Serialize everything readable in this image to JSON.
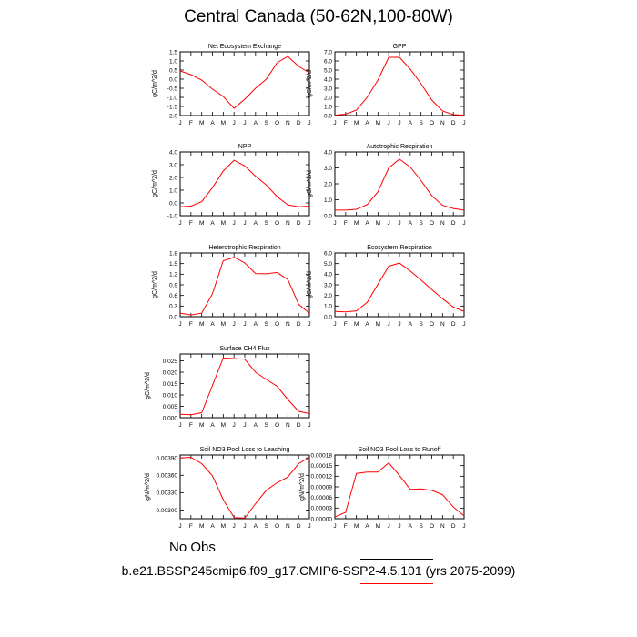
{
  "title": "Central Canada (50-62N,100-80W)",
  "no_obs": "No Obs",
  "case_caption": "b.e21.BSSP245cmip6.f09_g17.CMIP6-SSP2-4.5.101 (yrs 2075-2099)",
  "line_color": "#ff0000",
  "chart_data": [
    {
      "type": "line",
      "title": "Net Ecosystem Exchange",
      "ylabel": "gC/m^2/d",
      "x": [
        "J",
        "F",
        "M",
        "A",
        "M",
        "J",
        "J",
        "A",
        "S",
        "O",
        "N",
        "D",
        "J"
      ],
      "values": [
        0.45,
        0.25,
        -0.05,
        -0.55,
        -0.95,
        -1.6,
        -1.1,
        -0.5,
        0.0,
        0.9,
        1.25,
        0.7,
        0.35
      ],
      "ylim": [
        -2.0,
        1.5
      ],
      "yticks": [
        "-2.0",
        "-1.5",
        "-1.0",
        "-0.5",
        "0.0",
        "0.5",
        "1.0",
        "1.5"
      ]
    },
    {
      "type": "line",
      "title": "GPP",
      "ylabel": "gC/m^2/d",
      "x": [
        "J",
        "F",
        "M",
        "A",
        "M",
        "J",
        "J",
        "A",
        "S",
        "O",
        "N",
        "D",
        "J"
      ],
      "values": [
        0.05,
        0.15,
        0.6,
        2.0,
        3.9,
        6.4,
        6.4,
        5.1,
        3.5,
        1.7,
        0.5,
        0.1,
        0.05
      ],
      "ylim": [
        0.0,
        7.0
      ],
      "yticks": [
        "0.0",
        "1.0",
        "2.0",
        "3.0",
        "4.0",
        "5.0",
        "6.0",
        "7.0"
      ]
    },
    {
      "type": "line",
      "title": "NPP",
      "ylabel": "gC/m^2/d",
      "x": [
        "J",
        "F",
        "M",
        "A",
        "M",
        "J",
        "J",
        "A",
        "S",
        "O",
        "N",
        "D",
        "J"
      ],
      "values": [
        -0.3,
        -0.25,
        0.1,
        1.2,
        2.5,
        3.35,
        2.9,
        2.1,
        1.4,
        0.5,
        -0.15,
        -0.3,
        -0.25
      ],
      "ylim": [
        -1.0,
        4.0
      ],
      "yticks": [
        "-1.0",
        "0.0",
        "1.0",
        "2.0",
        "3.0",
        "4.0"
      ]
    },
    {
      "type": "line",
      "title": "Autotrophic Respiration",
      "ylabel": "gC/m^2/d",
      "x": [
        "J",
        "F",
        "M",
        "A",
        "M",
        "J",
        "J",
        "A",
        "S",
        "O",
        "N",
        "D",
        "J"
      ],
      "values": [
        0.35,
        0.35,
        0.4,
        0.7,
        1.5,
        3.0,
        3.55,
        3.05,
        2.2,
        1.25,
        0.65,
        0.45,
        0.35
      ],
      "ylim": [
        0.0,
        4.0
      ],
      "yticks": [
        "0.0",
        "1.0",
        "2.0",
        "3.0",
        "4.0"
      ]
    },
    {
      "type": "line",
      "title": "Heterotrophic Respiration",
      "ylabel": "gC/m^2/d",
      "x": [
        "J",
        "F",
        "M",
        "A",
        "M",
        "J",
        "J",
        "A",
        "S",
        "O",
        "N",
        "D",
        "J"
      ],
      "values": [
        0.1,
        0.05,
        0.1,
        0.65,
        1.58,
        1.68,
        1.52,
        1.22,
        1.21,
        1.25,
        1.05,
        0.35,
        0.1
      ],
      "ylim": [
        0.0,
        1.8
      ],
      "yticks": [
        "0.0",
        "0.3",
        "0.6",
        "0.9",
        "1.2",
        "1.5",
        "1.8"
      ]
    },
    {
      "type": "line",
      "title": "Ecosystem Respiration",
      "ylabel": "gC/m^2/d",
      "x": [
        "J",
        "F",
        "M",
        "A",
        "M",
        "J",
        "J",
        "A",
        "S",
        "O",
        "N",
        "D",
        "J"
      ],
      "values": [
        0.5,
        0.45,
        0.55,
        1.35,
        3.05,
        4.75,
        5.05,
        4.3,
        3.45,
        2.55,
        1.7,
        0.9,
        0.5
      ],
      "ylim": [
        0.0,
        6.0
      ],
      "yticks": [
        "0.0",
        "1.0",
        "2.0",
        "3.0",
        "4.0",
        "5.0",
        "6.0"
      ]
    },
    {
      "type": "line",
      "title": "Surface CH4 Flux",
      "ylabel": "gC/m^2/d",
      "x": [
        "J",
        "F",
        "M",
        "A",
        "M",
        "J",
        "J",
        "A",
        "S",
        "O",
        "N",
        "D",
        "J"
      ],
      "values": [
        0.0015,
        0.0013,
        0.0022,
        0.0142,
        0.0262,
        0.026,
        0.0257,
        0.02,
        0.0168,
        0.0138,
        0.008,
        0.0028,
        0.0018
      ],
      "ylim": [
        0.0,
        0.028
      ],
      "yticks": [
        "0.000",
        "0.005",
        "0.010",
        "0.015",
        "0.020",
        "0.025"
      ],
      "ytick_values": [
        0.0,
        0.005,
        0.01,
        0.015,
        0.02,
        0.025
      ]
    },
    null,
    {
      "type": "line",
      "title": "Soil NO3 Pool Loss to Leaching",
      "ylabel": "gN/m^2/d",
      "x": [
        "J",
        "F",
        "M",
        "A",
        "M",
        "J",
        "J",
        "A",
        "S",
        "O",
        "N",
        "D",
        "J"
      ],
      "values": [
        0.0039,
        0.00391,
        0.0038,
        0.00359,
        0.00318,
        0.00287,
        0.00286,
        0.00311,
        0.00334,
        0.00347,
        0.00357,
        0.0038,
        0.00391
      ],
      "ylim": [
        0.00285,
        0.00395
      ],
      "yticks": [
        "0.00300",
        "0.00330",
        "0.00360",
        "0.00390"
      ],
      "ytick_values": [
        0.003,
        0.0033,
        0.0036,
        0.0039
      ]
    },
    {
      "type": "line",
      "title": "Soil NO3 Pool Loss to Runoff",
      "ylabel": "gN/m^2/d",
      "x": [
        "J",
        "F",
        "M",
        "A",
        "M",
        "J",
        "J",
        "A",
        "S",
        "O",
        "N",
        "D",
        "J"
      ],
      "values": [
        5e-06,
        1.8e-05,
        0.000128,
        0.000132,
        0.000132,
        0.000158,
        0.000122,
        8.3e-05,
        8.4e-05,
        8e-05,
        6.8e-05,
        3.3e-05,
        8e-06
      ],
      "ylim": [
        0.0,
        0.00018
      ],
      "yticks": [
        "0.00000",
        "0.00003",
        "0.00006",
        "0.00009",
        "0.00012",
        "0.00015",
        "0.00018"
      ],
      "ytick_values": [
        0.0,
        3e-05,
        6e-05,
        9e-05,
        0.00012,
        0.00015,
        0.00018
      ]
    }
  ]
}
